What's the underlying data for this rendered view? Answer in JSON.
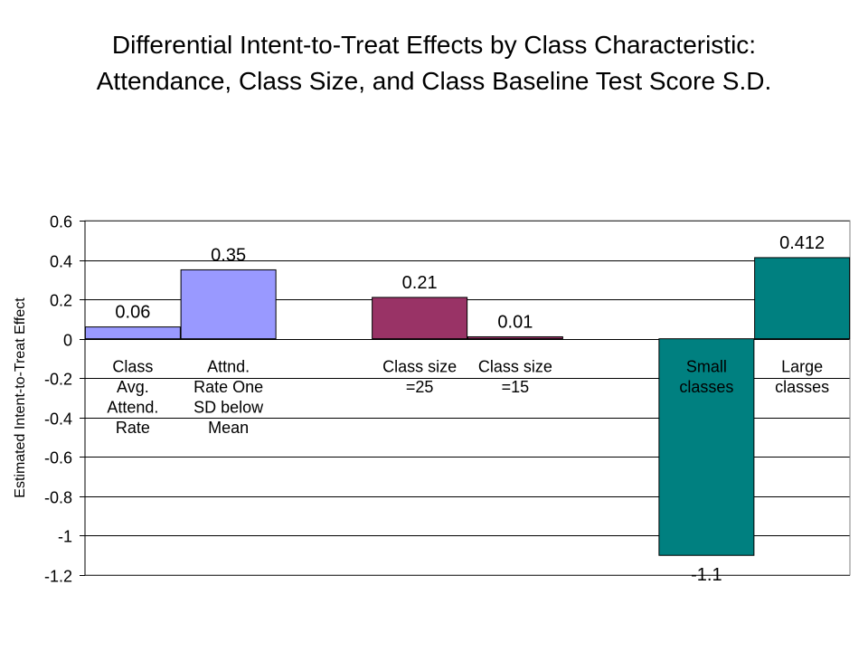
{
  "chart_data": {
    "type": "bar",
    "title": "Differential Intent-to-Treat Effects by Class Characteristic: Attendance, Class Size, and Class Baseline Test Score S.D.",
    "ylabel": "Estimated Intent-to-Treat Effect",
    "xlabel": "",
    "ylim": [
      -1.2,
      0.6
    ],
    "ytick_step": 0.2,
    "ytick_labels": [
      "0.6",
      "0.4",
      "0.2",
      "0",
      "-0.2",
      "-0.4",
      "-0.6",
      "-0.8",
      "-1",
      "-1.2"
    ],
    "grid": true,
    "legend": "none",
    "slot_count": 8,
    "bars": [
      {
        "slot": 0,
        "category": [
          "Class",
          "Avg.",
          "Attend.",
          "Rate"
        ],
        "value": 0.06,
        "label": "0.06",
        "color": "#9999FF"
      },
      {
        "slot": 1,
        "category": [
          "Attnd.",
          "Rate One",
          "SD below",
          "Mean"
        ],
        "value": 0.35,
        "label": "0.35",
        "color": "#9999FF"
      },
      {
        "slot": 3,
        "category": [
          "Class size",
          "=25"
        ],
        "value": 0.21,
        "label": "0.21",
        "color": "#993366"
      },
      {
        "slot": 4,
        "category": [
          "Class size",
          "=15"
        ],
        "value": 0.01,
        "label": "0.01",
        "color": "#993366"
      },
      {
        "slot": 6,
        "category": [
          "Small",
          "classes"
        ],
        "value": -1.1,
        "label": "-1.1",
        "color": "#008080"
      },
      {
        "slot": 7,
        "category": [
          "Large",
          "classes"
        ],
        "value": 0.412,
        "label": "0.412",
        "color": "#008080"
      }
    ]
  }
}
